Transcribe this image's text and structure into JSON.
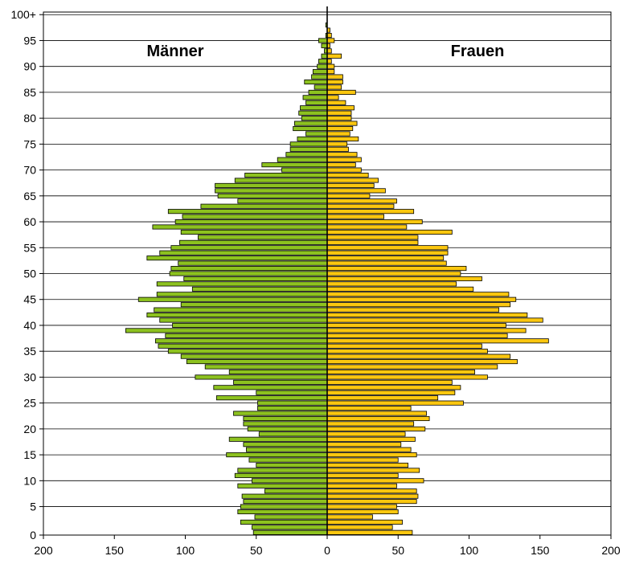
{
  "chart_data": {
    "type": "bar",
    "orientation": "horizontal",
    "subtype": "population-pyramid",
    "title": "",
    "xlabel": "",
    "ylabel": "",
    "xlim": [
      -200,
      200
    ],
    "ylim": [
      0,
      100
    ],
    "x_ticks": [
      -200,
      -150,
      -100,
      -50,
      0,
      50,
      100,
      150,
      200
    ],
    "x_tick_labels": [
      "200",
      "150",
      "100",
      "50",
      "0",
      "50",
      "100",
      "150",
      "200"
    ],
    "y_ticks": [
      0,
      5,
      10,
      15,
      20,
      25,
      30,
      35,
      40,
      45,
      50,
      55,
      60,
      65,
      70,
      75,
      80,
      85,
      90,
      95,
      100
    ],
    "y_tick_labels": [
      "0",
      "5",
      "10",
      "15",
      "20",
      "25",
      "30",
      "35",
      "40",
      "45",
      "50",
      "55",
      "60",
      "65",
      "70",
      "75",
      "80",
      "85",
      "90",
      "95",
      "100+"
    ],
    "grid": "horizontal gridlines every 5 years",
    "categories": [
      0,
      1,
      2,
      3,
      4,
      5,
      6,
      7,
      8,
      9,
      10,
      11,
      12,
      13,
      14,
      15,
      16,
      17,
      18,
      19,
      20,
      21,
      22,
      23,
      24,
      25,
      26,
      27,
      28,
      29,
      30,
      31,
      32,
      33,
      34,
      35,
      36,
      37,
      38,
      39,
      40,
      41,
      42,
      43,
      44,
      45,
      46,
      47,
      48,
      49,
      50,
      51,
      52,
      53,
      54,
      55,
      56,
      57,
      58,
      59,
      60,
      61,
      62,
      63,
      64,
      65,
      66,
      67,
      68,
      69,
      70,
      71,
      72,
      73,
      74,
      75,
      76,
      77,
      78,
      79,
      80,
      81,
      82,
      83,
      84,
      85,
      86,
      87,
      88,
      89,
      90,
      91,
      92,
      93,
      94,
      95,
      96,
      97,
      98,
      99,
      100
    ],
    "series": [
      {
        "name": "Männer",
        "color": "#8dc21f",
        "values": [
          52,
          53,
          61,
          51,
          63,
          61,
          59,
          60,
          44,
          63,
          53,
          65,
          63,
          50,
          55,
          71,
          57,
          59,
          69,
          48,
          56,
          59,
          59,
          66,
          49,
          49,
          78,
          50,
          80,
          66,
          93,
          69,
          86,
          99,
          103,
          112,
          119,
          121,
          114,
          142,
          109,
          118,
          127,
          122,
          103,
          133,
          120,
          95,
          120,
          101,
          111,
          110,
          105,
          127,
          118,
          110,
          104,
          91,
          103,
          123,
          107,
          102,
          112,
          89,
          63,
          77,
          79,
          79,
          65,
          58,
          32,
          46,
          35,
          29,
          26,
          26,
          21,
          15,
          24,
          23,
          18,
          20,
          19,
          15,
          17,
          13,
          9,
          16,
          11,
          10,
          7,
          6,
          4,
          2,
          4,
          6,
          1,
          0,
          1,
          0,
          0
        ]
      },
      {
        "name": "Frauen",
        "color": "#fbc70f",
        "values": [
          60,
          46,
          53,
          32,
          50,
          49,
          63,
          64,
          63,
          49,
          68,
          50,
          65,
          57,
          50,
          63,
          59,
          52,
          62,
          55,
          69,
          61,
          72,
          70,
          59,
          96,
          78,
          90,
          94,
          88,
          113,
          104,
          120,
          134,
          129,
          113,
          109,
          156,
          127,
          140,
          126,
          152,
          141,
          121,
          129,
          133,
          128,
          103,
          91,
          109,
          94,
          98,
          84,
          82,
          85,
          85,
          64,
          64,
          88,
          56,
          67,
          40,
          61,
          47,
          49,
          30,
          41,
          33,
          36,
          29,
          24,
          20,
          24,
          21,
          15,
          14,
          22,
          16,
          18,
          21,
          17,
          17,
          19,
          13,
          8,
          20,
          10,
          11,
          11,
          5,
          5,
          3,
          10,
          3,
          2,
          5,
          3,
          2,
          0,
          0,
          0
        ]
      }
    ],
    "annotations": [
      "Männer",
      "Frauen"
    ]
  }
}
